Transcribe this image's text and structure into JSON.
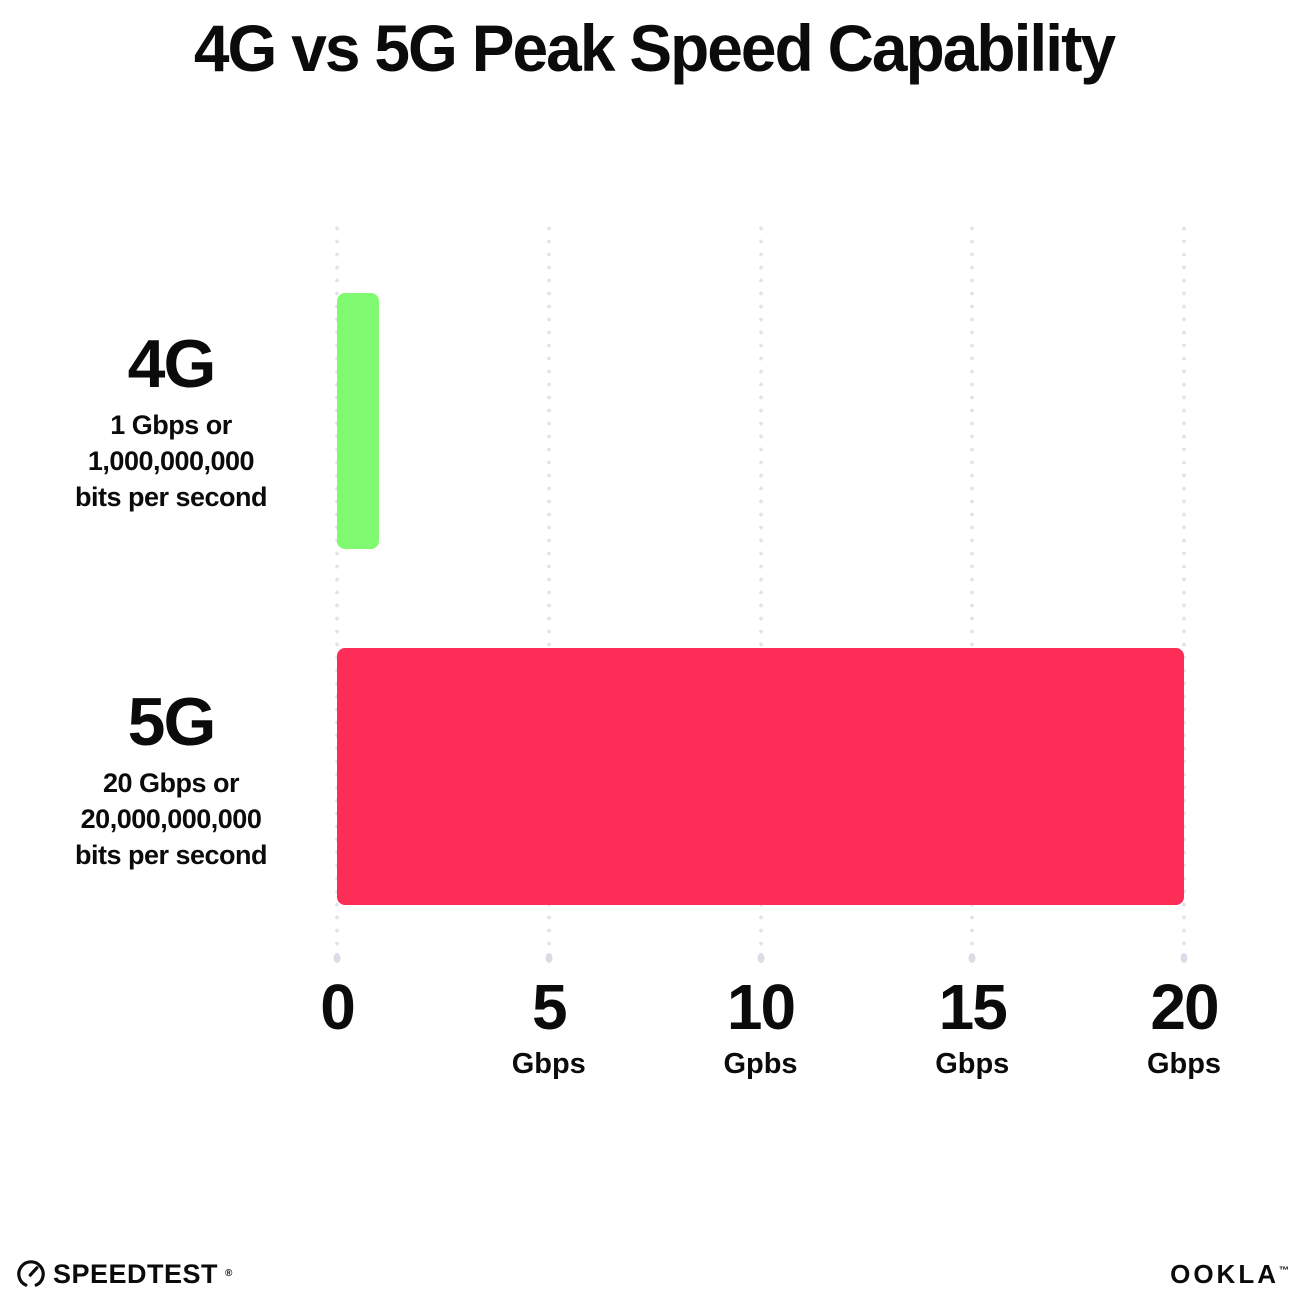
{
  "title": "4G vs 5G Peak Speed Capability",
  "chart_data": {
    "type": "bar",
    "orientation": "horizontal",
    "title": "4G vs 5G Peak Speed Capability",
    "categories": [
      "4G",
      "5G"
    ],
    "values": [
      1,
      20
    ],
    "value_unit": "Gbps",
    "xlabel": "",
    "ylabel": "",
    "xlim": [
      0,
      20
    ],
    "grid": "dotted vertical gridlines at 0, 5, 10, 15, 20",
    "legend_position": "none",
    "rows": [
      {
        "name": "4G",
        "desc_lines": [
          "1 Gbps or",
          "1,000,000,000",
          "bits per second"
        ],
        "value": 1,
        "color": "#80FA70"
      },
      {
        "name": "5G",
        "desc_lines": [
          "20 Gbps or",
          "20,000,000,000",
          "bits per second"
        ],
        "value": 20,
        "color": "#FC2D57"
      }
    ],
    "x_ticks": [
      {
        "num": "0",
        "unit": ""
      },
      {
        "num": "5",
        "unit": "Gbps"
      },
      {
        "num": "10",
        "unit": "Gpbs"
      },
      {
        "num": "15",
        "unit": "Gbps"
      },
      {
        "num": "20",
        "unit": "Gbps"
      }
    ]
  },
  "colors": {
    "bar_4g": "#80FA70",
    "bar_5g": "#FC2D57",
    "grid_dot": "#E3E3EE",
    "text": "#0B0B0B",
    "background": "#FFFFFF"
  },
  "footer": {
    "speedtest_label": "SPEEDTEST",
    "speedtest_tm": "®",
    "ookla_label": "OOKLA",
    "ookla_tm": "™"
  }
}
